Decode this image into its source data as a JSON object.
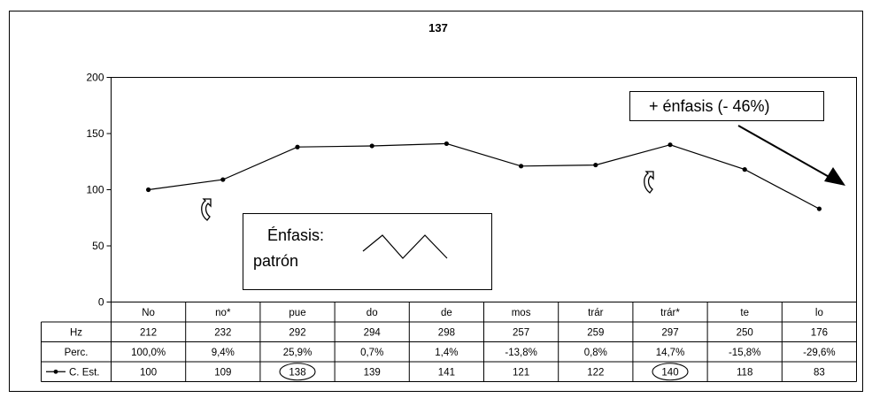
{
  "colors": {
    "line": "#000000",
    "frame": "#000000",
    "grid": "#666666",
    "background": "#ffffff"
  },
  "chart_data": {
    "type": "line",
    "title": "137",
    "categories": [
      "No",
      "no*",
      "pue",
      "do",
      "de",
      "mos",
      "trár",
      "trár*",
      "te",
      "lo"
    ],
    "series": [
      {
        "name": "C. Est.",
        "values": [
          100,
          109,
          138,
          139,
          141,
          121,
          122,
          140,
          118,
          83
        ]
      }
    ],
    "ylim": [
      0,
      200
    ],
    "yticks": [
      "0",
      "50",
      "100",
      "150",
      "200"
    ],
    "grid": false,
    "legend": "table-row-left",
    "table": {
      "rows": [
        {
          "label": "Hz",
          "cells": [
            "212",
            "232",
            "292",
            "294",
            "298",
            "257",
            "259",
            "297",
            "250",
            "176"
          ]
        },
        {
          "label": "Perc.",
          "cells": [
            "100,0%",
            "9,4%",
            "25,9%",
            "0,7%",
            "1,4%",
            "-13,8%",
            "0,8%",
            "14,7%",
            "-15,8%",
            "-29,6%"
          ]
        },
        {
          "label": "C. Est.",
          "cells": [
            "100",
            "109",
            "138",
            "139",
            "141",
            "121",
            "122",
            "140",
            "118",
            "83"
          ],
          "circled": [
            2,
            7
          ]
        }
      ]
    },
    "annotations": {
      "emphasis_box_line1": "Énfasis:",
      "emphasis_box_line2": "patrón",
      "emphasis_callout": "+ énfasis (- 46%)"
    }
  }
}
